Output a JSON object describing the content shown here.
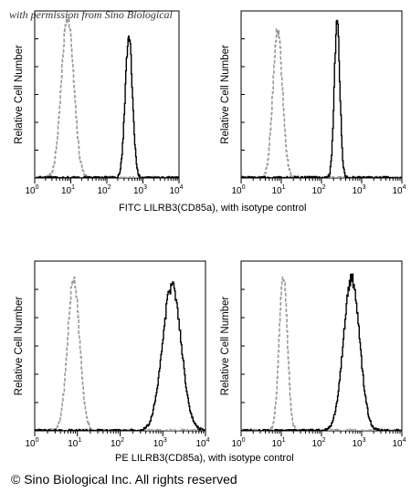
{
  "watermark": "with permission from Sino Biological",
  "captions": {
    "fitc": "FITC LILRB3(CD85a), with isotype control",
    "pe": "PE LILRB3(CD85a), with isotype control"
  },
  "copyright": "© Sino Biological Inc. All rights reserved",
  "colors": {
    "isotype": "#9a9a9a",
    "sample": "#000000"
  },
  "chart_data": [
    {
      "type": "histogram",
      "panel": "top-left",
      "ylabel": "Relative Cell Number",
      "x_scale": "log",
      "xlim": [
        1,
        10000
      ],
      "x_ticks": [
        {
          "base": "10",
          "exp": "0"
        },
        {
          "base": "10",
          "exp": "1"
        },
        {
          "base": "10",
          "exp": "2"
        },
        {
          "base": "10",
          "exp": "3"
        },
        {
          "base": "10",
          "exp": "4"
        }
      ],
      "series": [
        {
          "role": "isotype",
          "style": "dashed",
          "peak_x": 8,
          "width_decades": 0.17,
          "peak_rel": 0.97
        },
        {
          "role": "sample",
          "style": "solid",
          "peak_x": 400,
          "width_decades": 0.1,
          "peak_rel": 0.85
        }
      ]
    },
    {
      "type": "histogram",
      "panel": "top-right",
      "ylabel": "Relative Cell Number",
      "x_scale": "log",
      "xlim": [
        1,
        10000
      ],
      "x_ticks": [
        {
          "base": "10",
          "exp": "0"
        },
        {
          "base": "10",
          "exp": "1"
        },
        {
          "base": "10",
          "exp": "2"
        },
        {
          "base": "10",
          "exp": "3"
        },
        {
          "base": "10",
          "exp": "4"
        }
      ],
      "series": [
        {
          "role": "isotype",
          "style": "dashed",
          "peak_x": 8,
          "width_decades": 0.12,
          "peak_rel": 0.88
        },
        {
          "role": "sample",
          "style": "solid",
          "peak_x": 240,
          "width_decades": 0.07,
          "peak_rel": 0.93
        }
      ]
    },
    {
      "type": "histogram",
      "panel": "bottom-left",
      "ylabel": "Relative Cell Number",
      "x_scale": "log",
      "xlim": [
        1,
        10000
      ],
      "x_ticks": [
        {
          "base": "10",
          "exp": "0"
        },
        {
          "base": "10",
          "exp": "1"
        },
        {
          "base": "10",
          "exp": "2"
        },
        {
          "base": "10",
          "exp": "3"
        },
        {
          "base": "10",
          "exp": "4"
        }
      ],
      "series": [
        {
          "role": "isotype",
          "style": "dashed",
          "peak_x": 8,
          "width_decades": 0.14,
          "peak_rel": 0.9
        },
        {
          "role": "sample",
          "style": "solid",
          "peak_x": 1600,
          "width_decades": 0.22,
          "peak_rel": 0.85
        }
      ]
    },
    {
      "type": "histogram",
      "panel": "bottom-right",
      "ylabel": "Relative Cell Number",
      "x_scale": "log",
      "xlim": [
        1,
        10000
      ],
      "x_ticks": [
        {
          "base": "10",
          "exp": "0"
        },
        {
          "base": "10",
          "exp": "1"
        },
        {
          "base": "10",
          "exp": "2"
        },
        {
          "base": "10",
          "exp": "3"
        },
        {
          "base": "10",
          "exp": "4"
        }
      ],
      "series": [
        {
          "role": "isotype",
          "style": "dashed",
          "peak_x": 11,
          "width_decades": 0.1,
          "peak_rel": 0.92
        },
        {
          "role": "sample",
          "style": "solid",
          "peak_x": 550,
          "width_decades": 0.2,
          "peak_rel": 0.9
        }
      ]
    }
  ]
}
